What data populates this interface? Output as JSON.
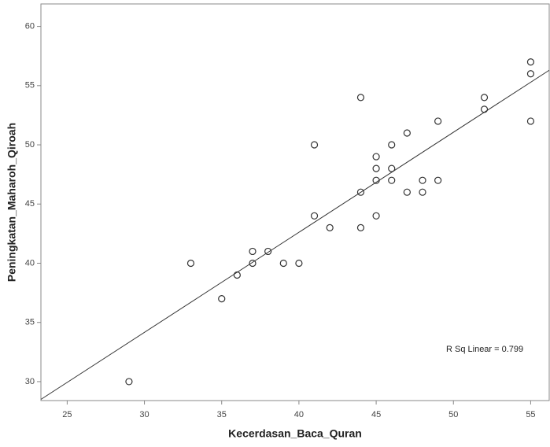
{
  "chart_data": {
    "type": "scatter",
    "x_label": "Kecerdasan_Baca_Quran",
    "y_label": "Peningkatan_Maharoh_Qiroah",
    "annotation": "R Sq Linear = 0.799",
    "xlim": [
      23.3,
      56.2
    ],
    "ylim": [
      28.4,
      61.9
    ],
    "xticks": [
      25,
      30,
      35,
      40,
      45,
      50,
      55
    ],
    "yticks": [
      30,
      35,
      40,
      45,
      50,
      55,
      60
    ],
    "x": [
      29,
      33,
      35,
      36,
      37,
      37,
      38,
      39,
      40,
      41,
      41,
      42,
      44,
      44,
      44,
      45,
      45,
      45,
      45,
      46,
      46,
      46,
      47,
      47,
      48,
      48,
      49,
      49,
      52,
      52,
      55,
      55,
      55
    ],
    "values": [
      30,
      40,
      37,
      39,
      41,
      40,
      41,
      40,
      40,
      50,
      44,
      43,
      54,
      46,
      43,
      49,
      48,
      47,
      44,
      50,
      48,
      47,
      51,
      46,
      47,
      46,
      52,
      47,
      54,
      53,
      57,
      56,
      52
    ],
    "color": "#333333",
    "fit_line": {
      "x": [
        23.3,
        56.2
      ],
      "y": [
        28.5,
        56.3
      ]
    }
  }
}
